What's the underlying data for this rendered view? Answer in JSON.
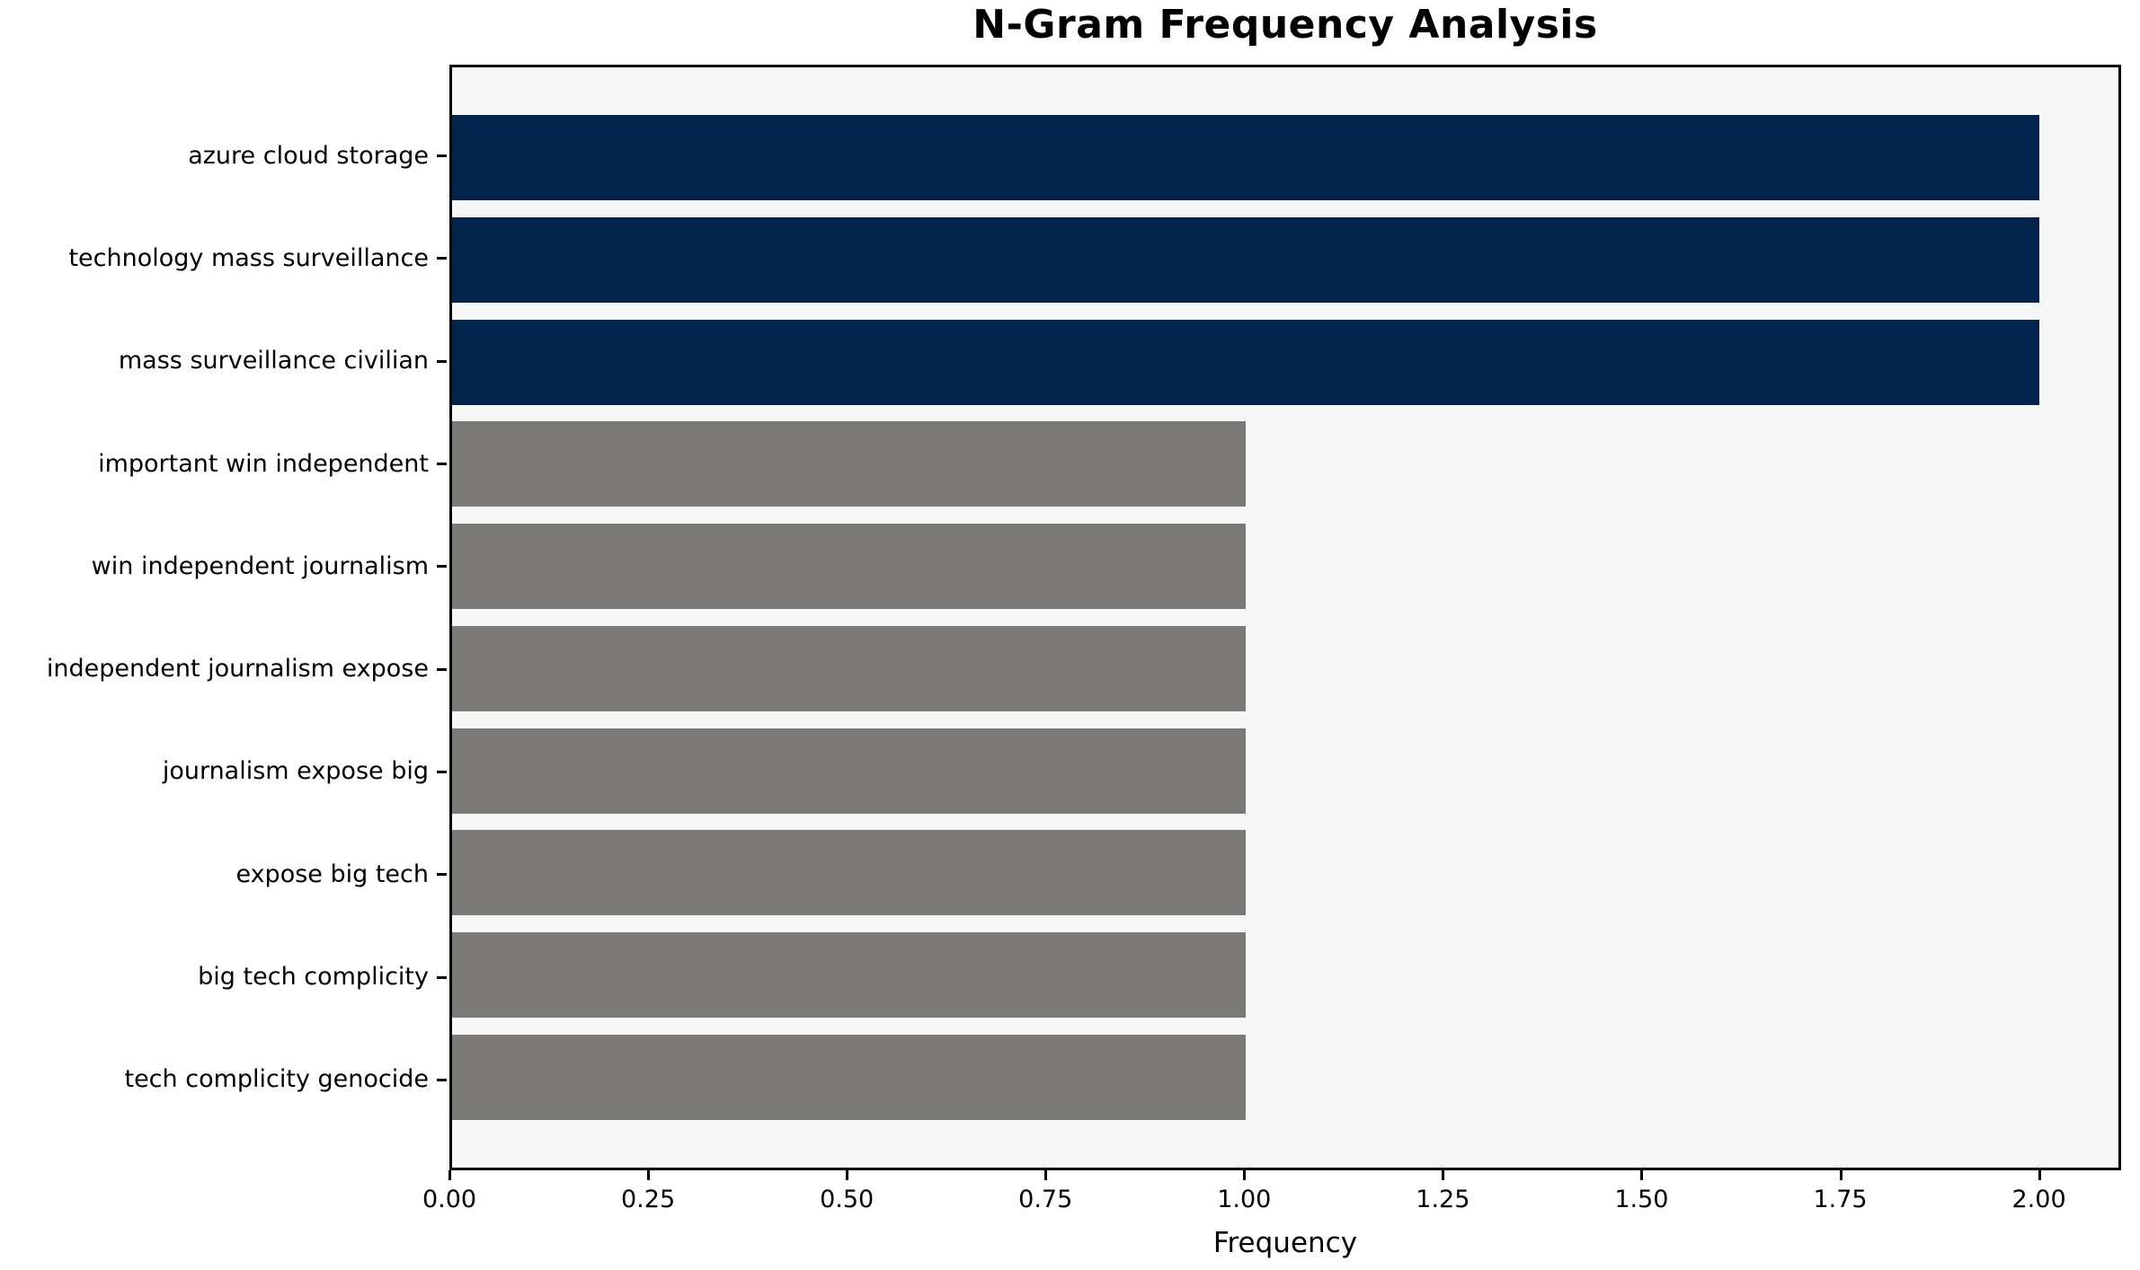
{
  "figure": {
    "background_color": "#ffffff",
    "axes_background_color": "#f7f7f7",
    "spine_color": "#000000",
    "text_color": "#000000"
  },
  "chart_data": {
    "type": "bar",
    "orientation": "horizontal",
    "title": "N-Gram Frequency Analysis",
    "xlabel": "Frequency",
    "ylabel": "",
    "categories": [
      "azure cloud storage",
      "technology mass surveillance",
      "mass surveillance civilian",
      "important win independent",
      "win independent journalism",
      "independent journalism expose",
      "journalism expose big",
      "expose big tech",
      "big tech complicity",
      "tech complicity genocide"
    ],
    "values": [
      2,
      2,
      2,
      1,
      1,
      1,
      1,
      1,
      1,
      1
    ],
    "bar_colors": [
      "#02234c",
      "#02234c",
      "#02234c",
      "#7b7a77",
      "#7b7a77",
      "#7b7a77",
      "#7b7a77",
      "#7b7a77",
      "#7b7a77",
      "#7b7a77"
    ],
    "highlight_color": "#02234c",
    "default_color": "#7b7a77",
    "xlim": [
      0,
      2.1
    ],
    "xticks": [
      0.0,
      0.25,
      0.5,
      0.75,
      1.0,
      1.25,
      1.5,
      1.75,
      2.0
    ],
    "xtick_labels": [
      "0.00",
      "0.25",
      "0.50",
      "0.75",
      "1.00",
      "1.25",
      "1.50",
      "1.75",
      "2.00"
    ],
    "grid": false,
    "legend": null
  }
}
